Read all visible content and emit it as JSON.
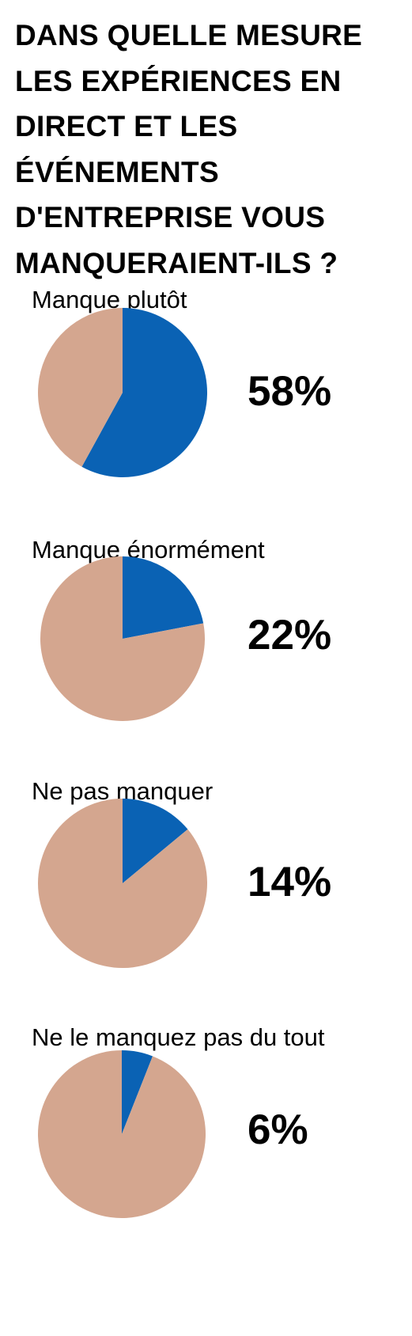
{
  "title_lines": [
    "DANS QUELLE MESURE",
    "LES EXPÉRIENCES EN",
    "DIRECT ET LES",
    "ÉVÉNEMENTS",
    "D'ENTREPRISE VOUS",
    "MANQUERAIENT-ILS ?"
  ],
  "colors": {
    "highlight": "#0a62b4",
    "remainder": "#d4a68f",
    "background": "#ffffff",
    "text": "#000000"
  },
  "chart_data": [
    {
      "type": "pie",
      "title": "Manque plutôt",
      "values": [
        58,
        42
      ],
      "value_label": "58%"
    },
    {
      "type": "pie",
      "title": "Manque énormément",
      "values": [
        22,
        78
      ],
      "value_label": "22%"
    },
    {
      "type": "pie",
      "title": "Ne pas manquer",
      "values": [
        14,
        86
      ],
      "value_label": "14%"
    },
    {
      "type": "pie",
      "title": "Ne le manquez pas du tout",
      "values": [
        6,
        94
      ],
      "value_label": "6%"
    }
  ]
}
